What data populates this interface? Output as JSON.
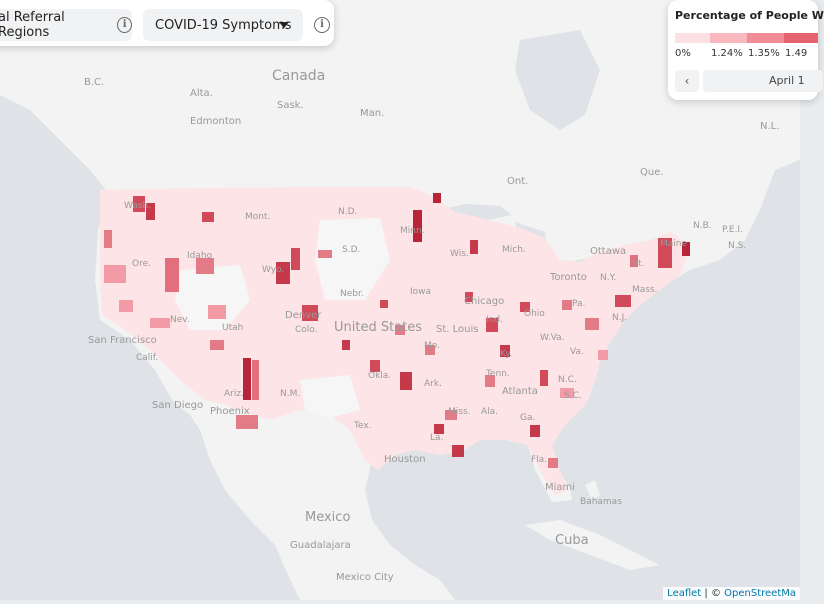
{
  "controls": {
    "region_label": "al Referral Regions",
    "symptom_label": "COVID-19 Symptoms",
    "region_icon": "info-icon",
    "symptom_icon": "info-icon",
    "caret_icon": "caret-down-icon"
  },
  "legend": {
    "title": "Percentage of People W",
    "ticks": [
      "0%",
      "1.24%",
      "1.35%",
      "1.49"
    ],
    "colors": [
      "#fde0e3",
      "#f9b8bf",
      "#f28d97",
      "#e5636f"
    ],
    "prev_icon": "chevron-left-icon",
    "date": "April 1"
  },
  "attribution": {
    "leaflet": "Leaflet",
    "separator": " | © ",
    "osm": "OpenStreetMa"
  },
  "map": {
    "labels": {
      "canada": "Canada",
      "bc": "B.C.",
      "alta": "Alta.",
      "sask": "Sask.",
      "man": "Man.",
      "edmonton": "Edmonton",
      "ont": "Ont.",
      "que": "Que.",
      "nl": "N.L.",
      "nb": "N.B.",
      "pei": "P.E.I.",
      "ns": "N.S.",
      "ottawa": "Ottawa",
      "toronto": "Toronto",
      "wash": "Wash.",
      "mont": "Mont.",
      "nd": "N.D.",
      "sd": "S.D.",
      "minn": "Minn.",
      "idaho": "Idaho",
      "wyo": "Wyo.",
      "ore": "Ore.",
      "nev": "Nev.",
      "utah": "Utah",
      "colo": "Colo.",
      "denver": "Denver",
      "nebr": "Nebr.",
      "wis": "Wis.",
      "mich": "Mich.",
      "iowa": "Iowa",
      "chicago": "Chicago",
      "ind": "Ind.",
      "ohio": "Ohio",
      "pa": "Pa.",
      "ny": "N.Y.",
      "vt": "Vt.",
      "maine": "Maine",
      "mass": "Mass.",
      "nj": "N.J.",
      "wva": "W.Va.",
      "united_states": "United States",
      "st_louis": "St. Louis",
      "mo": "Mo.",
      "ky": "Ky.",
      "va": "Va.",
      "san_francisco": "San Francisco",
      "calif": "Calif.",
      "okla": "Okla.",
      "ark": "Ark.",
      "tenn": "Tenn.",
      "nc": "N.C.",
      "sc": "S.C.",
      "ariz": "Ariz.",
      "nm": "N.M.",
      "atlanta": "Atlanta",
      "san_diego": "San Diego",
      "phoenix": "Phoenix",
      "miss": "Miss.",
      "ala": "Ala.",
      "ga": "Ga.",
      "tex": "Tex.",
      "houston": "Houston",
      "la": "La.",
      "fla": "Fla.",
      "miami": "Miami",
      "bahamas": "Bahamas",
      "mexico": "Mexico",
      "guadalajara": "Guadalajara",
      "mexico_city": "Mexico City",
      "cuba": "Cuba"
    }
  }
}
